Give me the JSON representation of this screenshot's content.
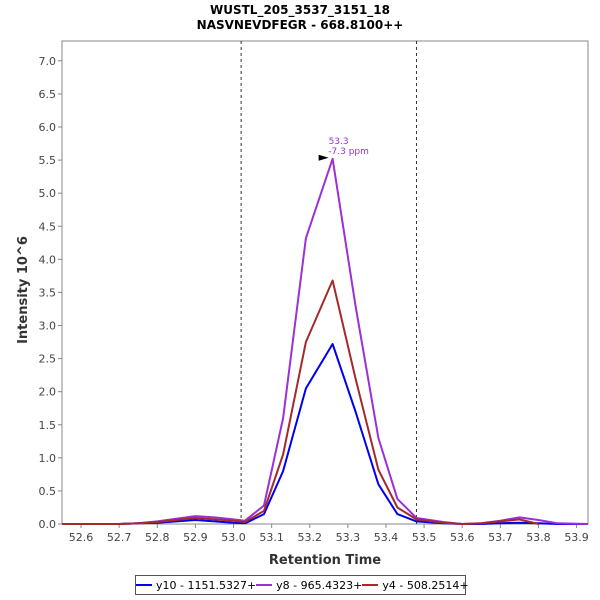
{
  "chart_data": {
    "type": "line",
    "title": "WUSTL_205_3537_3151_18",
    "subtitle": "NASVNEVDFEGR - 668.8100++",
    "xlabel": "Retention Time",
    "ylabel": "Intensity 10^6",
    "xlim": [
      52.55,
      53.93
    ],
    "ylim": [
      0,
      7.3
    ],
    "x_ticks": [
      "52.6",
      "52.7",
      "52.8",
      "52.9",
      "53.0",
      "53.1",
      "53.2",
      "53.3",
      "53.4",
      "53.5",
      "53.6",
      "53.7",
      "53.8",
      "53.9"
    ],
    "y_ticks": [
      "0.0",
      "0.5",
      "1.0",
      "1.5",
      "2.0",
      "2.5",
      "3.0",
      "3.5",
      "4.0",
      "4.5",
      "5.0",
      "5.5",
      "6.0",
      "6.5",
      "7.0"
    ],
    "boundary_lines": [
      53.02,
      53.48
    ],
    "annotation": {
      "x": 53.26,
      "y": 5.52,
      "line1": "53.3",
      "line2": "-7.3 ppm",
      "color": "#9b30d9"
    },
    "legend_position": "bottom",
    "series": [
      {
        "name": "y10 - 1151.5327+",
        "color": "#0000ee",
        "x": [
          52.55,
          52.7,
          52.75,
          52.8,
          52.85,
          52.9,
          52.95,
          53.0,
          53.03,
          53.08,
          53.13,
          53.19,
          53.26,
          53.32,
          53.38,
          53.43,
          53.48,
          53.55,
          53.6,
          53.65,
          53.7,
          53.75,
          53.8,
          53.85,
          53.93
        ],
        "y": [
          0.0,
          0.0,
          0.01,
          0.02,
          0.04,
          0.06,
          0.04,
          0.02,
          0.01,
          0.15,
          0.8,
          2.05,
          2.72,
          1.7,
          0.6,
          0.15,
          0.04,
          0.01,
          0.0,
          0.0,
          0.01,
          0.02,
          0.01,
          0.0,
          0.0
        ]
      },
      {
        "name": "y8 - 965.4323+",
        "color": "#9b30d9",
        "x": [
          52.55,
          52.7,
          52.75,
          52.8,
          52.85,
          52.9,
          52.95,
          53.0,
          53.03,
          53.08,
          53.13,
          53.19,
          53.26,
          53.32,
          53.38,
          53.43,
          53.48,
          53.55,
          53.6,
          53.65,
          53.7,
          53.75,
          53.8,
          53.85,
          53.93
        ],
        "y": [
          0.0,
          0.0,
          0.01,
          0.04,
          0.08,
          0.12,
          0.1,
          0.07,
          0.05,
          0.28,
          1.6,
          4.32,
          5.52,
          3.3,
          1.3,
          0.38,
          0.09,
          0.03,
          0.0,
          0.01,
          0.05,
          0.1,
          0.06,
          0.01,
          0.0
        ]
      },
      {
        "name": "y4 - 508.2514+",
        "color": "#a52a2a",
        "x": [
          52.55,
          52.7,
          52.75,
          52.8,
          52.85,
          52.9,
          52.95,
          53.0,
          53.03,
          53.08,
          53.13,
          53.19,
          53.26,
          53.32,
          53.38,
          53.43,
          53.48,
          53.55,
          53.6,
          53.65,
          53.7,
          53.75,
          53.8
        ],
        "y": [
          0.0,
          0.0,
          0.01,
          0.03,
          0.06,
          0.09,
          0.07,
          0.05,
          0.03,
          0.2,
          1.05,
          2.75,
          3.68,
          2.2,
          0.82,
          0.25,
          0.07,
          0.02,
          0.0,
          0.01,
          0.04,
          0.07,
          0.0
        ]
      }
    ]
  }
}
